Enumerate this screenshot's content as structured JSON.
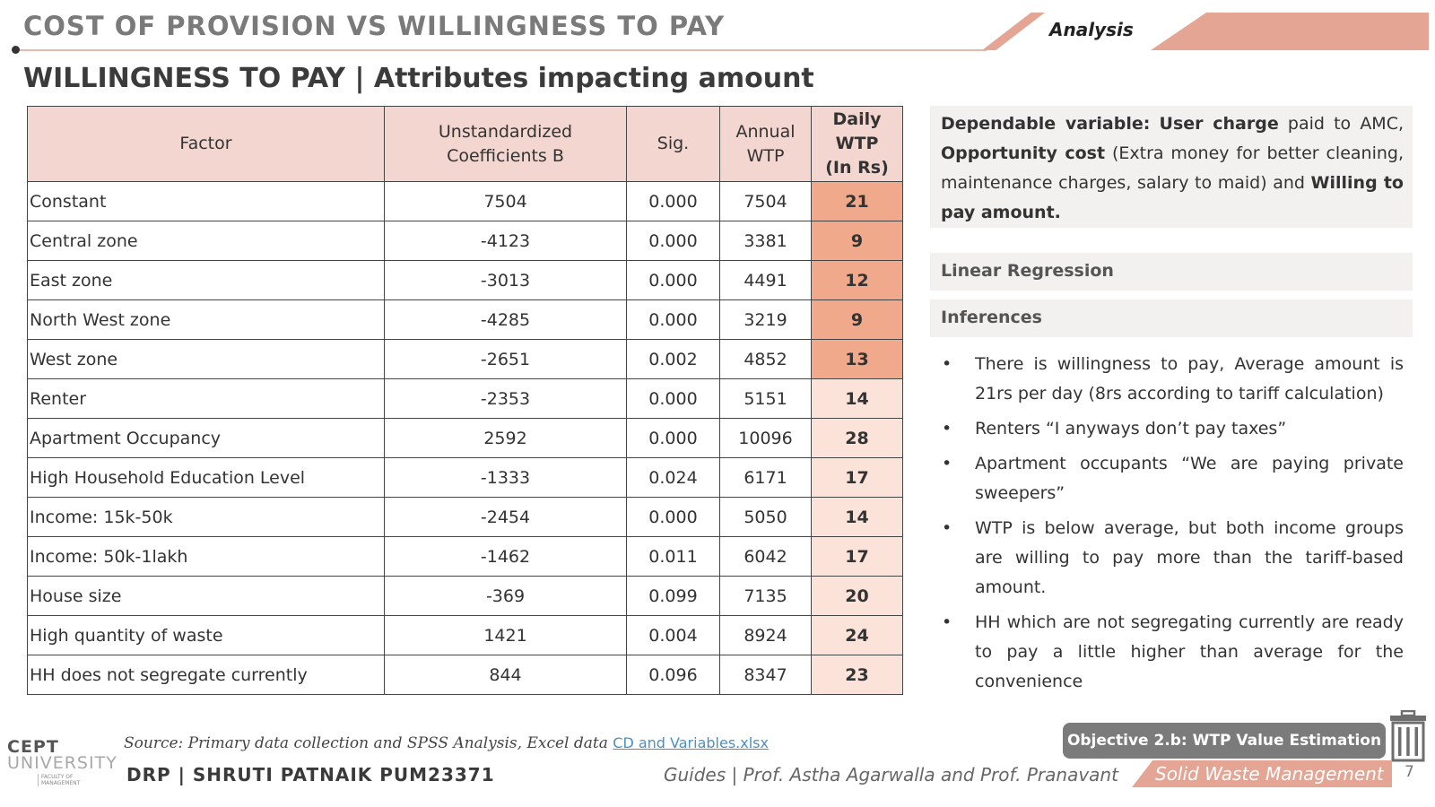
{
  "header": {
    "title": "COST OF PROVISION VS WILLINGNESS TO PAY",
    "section_tag": "Analysis",
    "subtitle": "WILLINGNESS TO PAY | Attributes impacting amount",
    "accent_color": "#e4a594"
  },
  "table": {
    "headers": {
      "factor": "Factor",
      "coef_line1": "Unstandardized",
      "coef_line2": "Coefficients B",
      "sig": "Sig.",
      "annual_line1": "Annual",
      "annual_line2": "WTP",
      "daily_line1": "Daily",
      "daily_line2": "WTP",
      "daily_line3": "(In Rs)"
    },
    "rows": [
      {
        "factor": "Constant",
        "coef": "7504",
        "sig": "0.000",
        "annual": "7504",
        "daily": "21"
      },
      {
        "factor": "Central zone",
        "coef": "-4123",
        "sig": "0.000",
        "annual": "3381",
        "daily": "9"
      },
      {
        "factor": "East zone",
        "coef": "-3013",
        "sig": "0.000",
        "annual": "4491",
        "daily": "12"
      },
      {
        "factor": "North West zone",
        "coef": "-4285",
        "sig": "0.000",
        "annual": "3219",
        "daily": "9"
      },
      {
        "factor": "West zone",
        "coef": "-2651",
        "sig": "0.002",
        "annual": "4852",
        "daily": "13"
      },
      {
        "factor": "Renter",
        "coef": "-2353",
        "sig": "0.000",
        "annual": "5151",
        "daily": "14"
      },
      {
        "factor": "Apartment Occupancy",
        "coef": "2592",
        "sig": "0.000",
        "annual": "10096",
        "daily": "28"
      },
      {
        "factor": "High Household Education Level",
        "coef": "-1333",
        "sig": "0.024",
        "annual": "6171",
        "daily": "17"
      },
      {
        "factor": "Income: 15k-50k",
        "coef": "-2454",
        "sig": "0.000",
        "annual": "5050",
        "daily": "14"
      },
      {
        "factor": "Income: 50k-1lakh",
        "coef": "-1462",
        "sig": "0.011",
        "annual": "6042",
        "daily": "17"
      },
      {
        "factor": "House size",
        "coef": "-369",
        "sig": "0.099",
        "annual": "7135",
        "daily": "20"
      },
      {
        "factor": "High quantity of waste",
        "coef": "1421",
        "sig": "0.004",
        "annual": "8924",
        "daily": "24"
      },
      {
        "factor": "HH does not segregate currently",
        "coef": "844",
        "sig": "0.096",
        "annual": "8347",
        "daily": "23"
      }
    ],
    "header_bg": "#f3d6cf",
    "highlight_dark": "#f0a98a",
    "highlight_light": "#fbe3da"
  },
  "dependent": {
    "label": "Dependable variable:",
    "t1": " ",
    "b1": "User charge",
    "t2": " paid to AMC, ",
    "b2": "Opportunity cost",
    "t3": " (Extra money for better cleaning, maintenance charges, salary to maid) and ",
    "b3": "Willing to pay amount."
  },
  "regression_label": "Linear Regression",
  "inferences_label": "Inferences",
  "inferences": [
    "There is willingness to pay, Average amount is 21rs per day (8rs according to tariff calculation)",
    "Renters “I anyways don’t pay taxes”",
    "Apartment occupants “We are paying private sweepers”",
    "WTP is below average, but both income groups are willing to pay more than the tariff-based amount.",
    "HH which are not segregating currently are ready to pay a little higher than average for the convenience"
  ],
  "objective_badge": "Objective 2.b: WTP Value Estimation",
  "logo": {
    "line1": "CEPT",
    "line2": "UNIVERSITY",
    "line3": "FACULTY OF MANAGEMENT"
  },
  "source": {
    "prefix": "Source: Primary data collection and SPSS Analysis, Excel data ",
    "link": "CD and Variables.xlsx"
  },
  "footer": {
    "author": "DRP | SHRUTI PATNAIK PUM23371",
    "guides": "Guides | Prof. Astha Agarwalla and Prof. Pranavant",
    "topic": "Solid Waste Management",
    "page": "7"
  }
}
